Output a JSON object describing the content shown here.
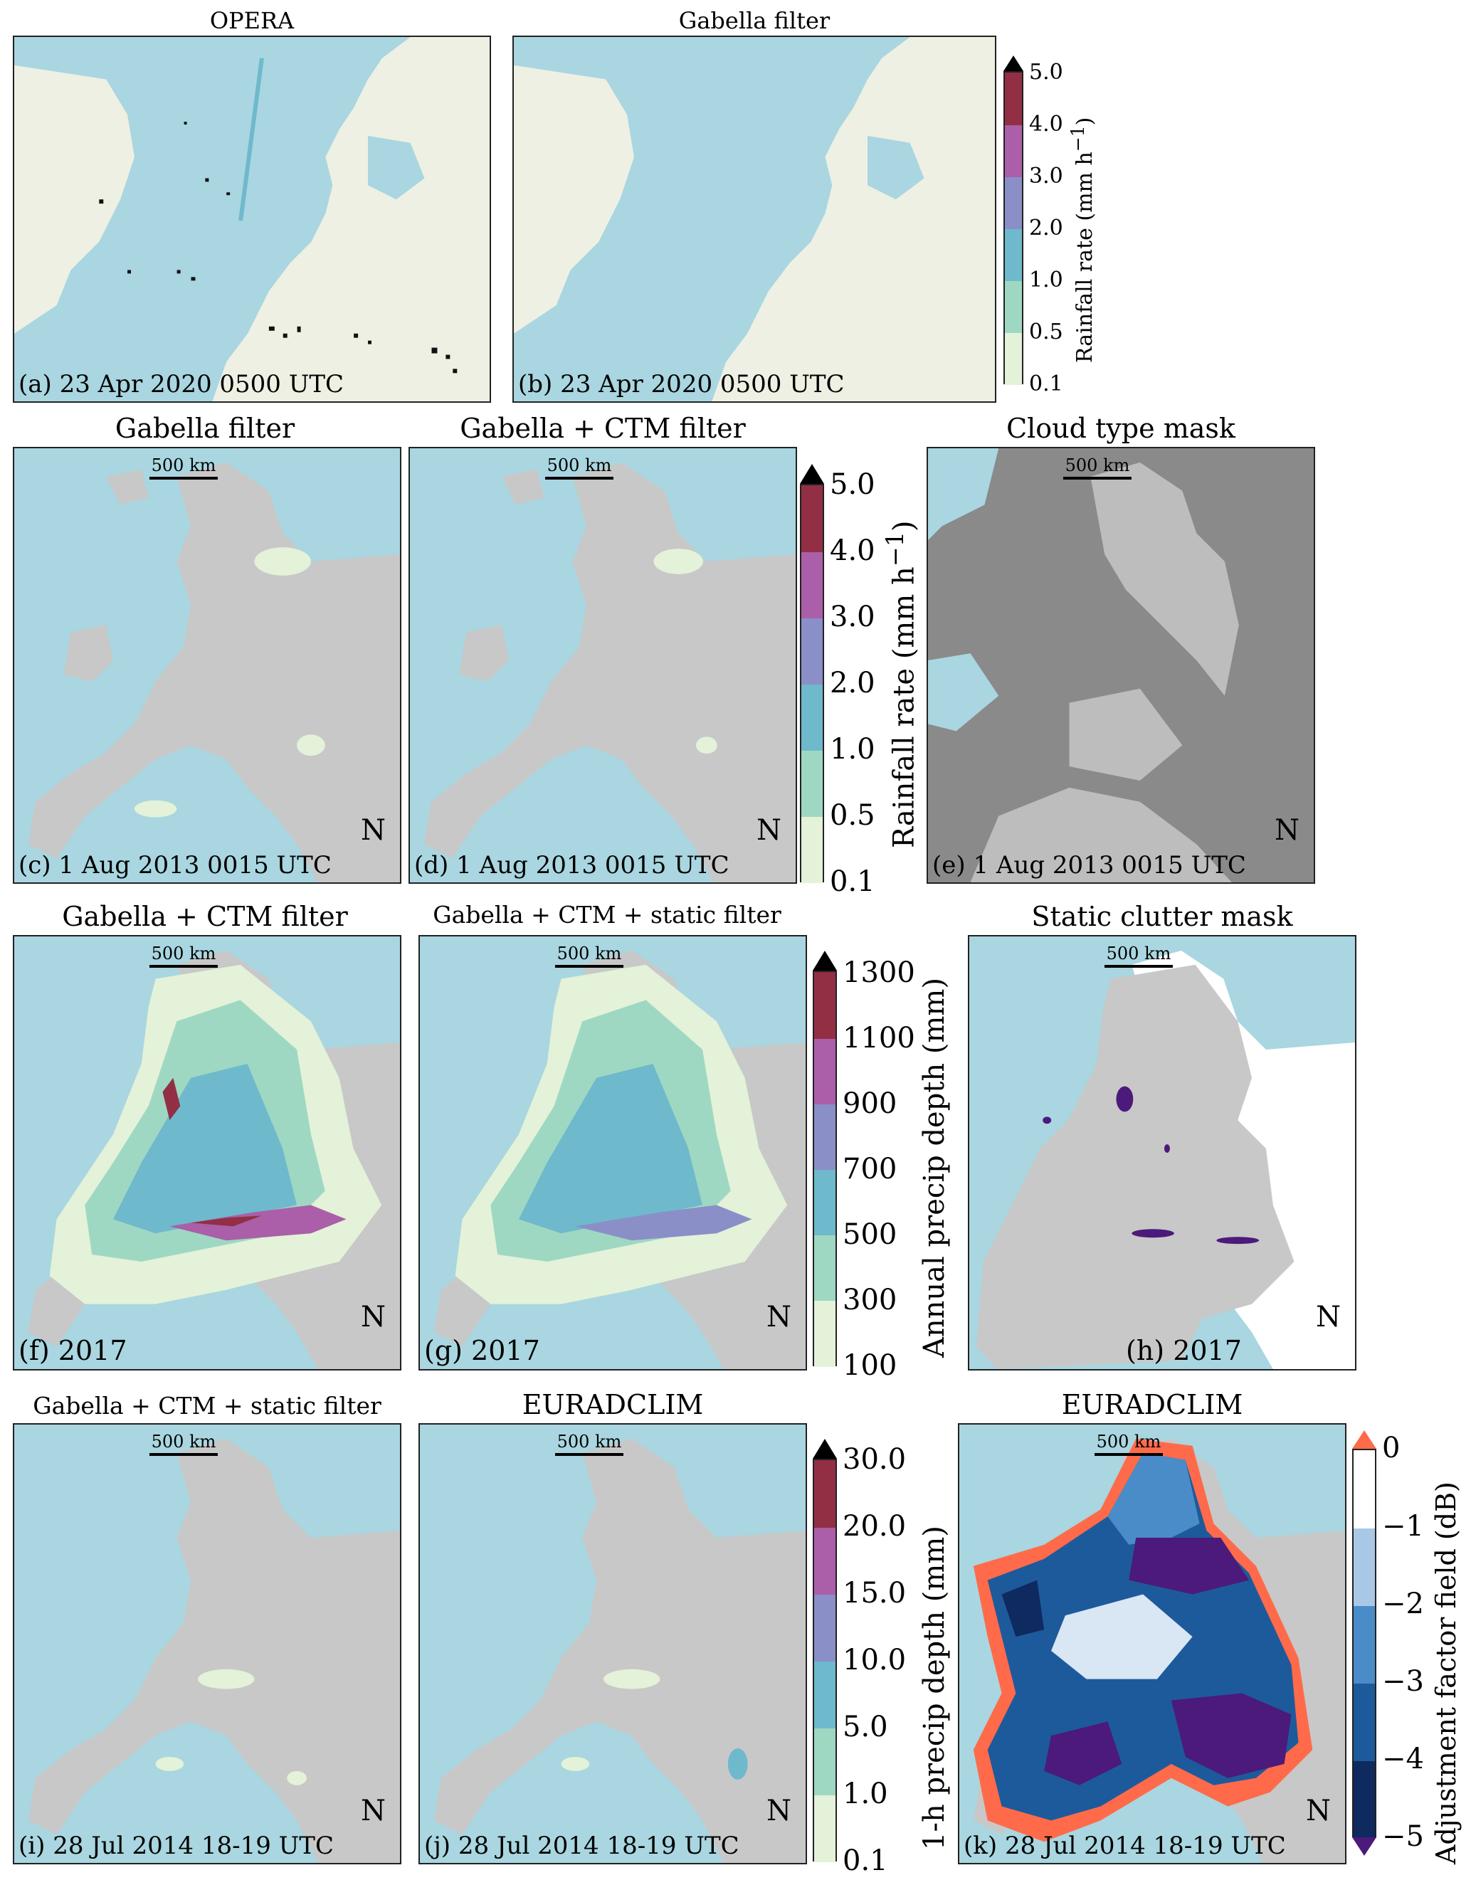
{
  "row1": {
    "panels": [
      {
        "title": "OPERA",
        "label": "(a) 23 Apr 2020 0500 UTC"
      },
      {
        "title": "Gabella filter",
        "label": "(b) 23 Apr 2020 0500 UTC"
      }
    ],
    "colorbar": {
      "label": "Rainfall rate (mm h",
      "label_sup": "−1",
      "label_end": ")",
      "ticks": [
        "0.1",
        "0.5",
        "1.0",
        "2.0",
        "3.0",
        "4.0",
        "5.0"
      ],
      "colors": [
        "#e3f2d8",
        "#9fd8c2",
        "#6fb9cc",
        "#8a8fc8",
        "#aa5fa8",
        "#922f45"
      ]
    }
  },
  "row2": {
    "panels": [
      {
        "title": "Gabella filter",
        "label": "(c) 1 Aug 2013 0015 UTC"
      },
      {
        "title": "Gabella + CTM filter",
        "label": "(d) 1 Aug 2013 0015 UTC"
      },
      {
        "title": "Cloud type mask",
        "label": "(e) 1 Aug 2013 0015 UTC"
      }
    ],
    "colorbar": {
      "label": "Rainfall rate (mm h",
      "label_sup": "−1",
      "label_end": ")",
      "ticks": [
        "0.1",
        "0.5",
        "1.0",
        "2.0",
        "3.0",
        "4.0",
        "5.0"
      ],
      "colors": [
        "#e3f2d8",
        "#9fd8c2",
        "#6fb9cc",
        "#8a8fc8",
        "#aa5fa8",
        "#922f45"
      ]
    }
  },
  "row3": {
    "panels": [
      {
        "title": "Gabella + CTM filter",
        "label": "(f) 2017"
      },
      {
        "title": "Gabella + CTM + static filter",
        "label": "(g) 2017"
      },
      {
        "title": "Static clutter mask",
        "label": "(h) 2017"
      }
    ],
    "colorbar": {
      "label": "Annual precip depth (mm)",
      "ticks": [
        "100",
        "300",
        "500",
        "700",
        "900",
        "1100",
        "1300"
      ],
      "colors": [
        "#e3f2d8",
        "#9fd8c2",
        "#6fb9cc",
        "#8a8fc8",
        "#aa5fa8",
        "#922f45"
      ]
    }
  },
  "row4": {
    "panels": [
      {
        "title": "Gabella + CTM + static filter",
        "label": "(i) 28 Jul 2014 18-19 UTC"
      },
      {
        "title": "EURADCLIM",
        "label": "(j) 28 Jul 2014 18-19 UTC"
      },
      {
        "title": "EURADCLIM",
        "label": "(k) 28 Jul 2014 18-19 UTC"
      }
    ],
    "colorbar": {
      "label": "1-h precip depth (mm)",
      "ticks": [
        "0.1",
        "1.0",
        "5.0",
        "10.0",
        "15.0",
        "20.0",
        "30.0"
      ],
      "colors": [
        "#e3f2d8",
        "#9fd8c2",
        "#6fb9cc",
        "#8a8fc8",
        "#aa5fa8",
        "#922f45"
      ]
    },
    "colorbar2": {
      "label": "Adjustment factor field (dB)",
      "ticks": [
        "−5",
        "−4",
        "−3",
        "−2",
        "−1",
        "0"
      ],
      "colors": [
        "#0e2a5e",
        "#1d5a9c",
        "#4a8cc8",
        "#a9c8e6",
        "#ffffff"
      ]
    }
  },
  "scale_text": "500 km",
  "north_text": "N",
  "colors": {
    "sea": "#a9d6e0",
    "land": "#c8c8c8",
    "osm_land": "#eef0e4",
    "cloud_dark": "#8a8a8a",
    "cloud_light": "#bdbdbd",
    "clutter": "#4b1a7a"
  }
}
